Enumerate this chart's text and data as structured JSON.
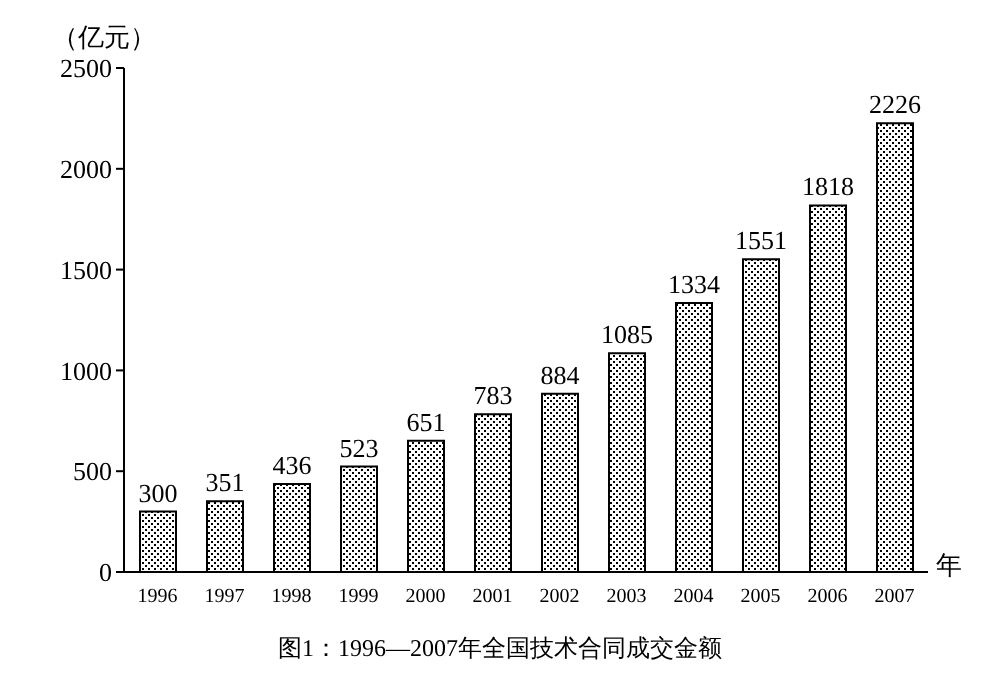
{
  "chart_data": {
    "type": "bar",
    "title": "图1：1996—2007年全国技术合同成交金额",
    "ylabel": "（亿元）",
    "xlabel": "年",
    "categories": [
      "1996",
      "1997",
      "1998",
      "1999",
      "2000",
      "2001",
      "2002",
      "2003",
      "2004",
      "2005",
      "2006",
      "2007"
    ],
    "values": [
      300,
      351,
      436,
      523,
      651,
      783,
      884,
      1085,
      1334,
      1551,
      1818,
      2226
    ],
    "color": "#000000",
    "ylim": [
      0,
      2500
    ],
    "yticks": [
      0,
      500,
      1000,
      1500,
      2000,
      2500
    ],
    "grid": false,
    "data_labels": true
  }
}
